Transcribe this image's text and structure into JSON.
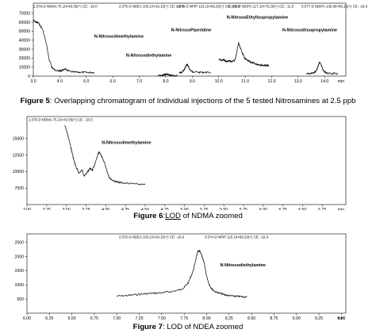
{
  "figures": [
    {
      "id": "fig5",
      "caption_label": "Figure 5",
      "caption_text": ": Overlapping chromatogram of Individual injections of the 5 tested Nitrosamines at 2.5 ppb",
      "header_texts": [
        "1:376-D NDMA 75.10>43.05(+) CE: -18.0",
        "2:375-D NDEA 103.10>29.15(+) CE: -16.0",
        "3:374-D NPIP 115.10>69.20(+) CE: -16.0",
        "4:378-D NEIPA 117.10>75.20(+) CE: -11.0",
        "5:377-D NDIPA 130.90>89.15(+) CE: -18.0"
      ],
      "chart_data": {
        "type": "line",
        "xlim": [
          3.0,
          14.8
        ],
        "ylim": [
          0,
          75000
        ],
        "xticks": [
          3.0,
          4.0,
          5.0,
          6.0,
          7.0,
          8.0,
          9.0,
          10.0,
          11.0,
          12.0,
          13.0,
          14.0
        ],
        "xtick_labels": [
          "3.0",
          "4.0",
          "5.0",
          "6.0",
          "7.0",
          "8.0",
          "9.0",
          "10.0",
          "11.0",
          "12.0",
          "13.0",
          "14.0"
        ],
        "yticks": [
          0,
          10000,
          20000,
          30000,
          40000,
          50000,
          60000,
          70000
        ],
        "ytick_labels": [
          "0",
          "10000",
          "20000",
          "30000",
          "40000",
          "50000",
          "60000",
          "70000"
        ],
        "xunit": "min",
        "series": [
          {
            "x": [
              3.0,
              3.1,
              3.2,
              3.35,
              3.5,
              3.6,
              3.7,
              3.8,
              3.9,
              4.0,
              4.1,
              4.2,
              4.3,
              4.5,
              4.7,
              4.9,
              5.1,
              5.3
            ],
            "y": [
              62000,
              60000,
              59000,
              52000,
              35000,
              18000,
              10000,
              7000,
              6000,
              5500,
              6500,
              8000,
              6000,
              4500,
              4300,
              4200,
              4100,
              4000
            ]
          },
          {
            "x": [
              7.7,
              7.85,
              7.95,
              8.02,
              8.1,
              8.2,
              8.3,
              8.45
            ],
            "y": [
              600,
              700,
              1400,
              2300,
              1500,
              800,
              600,
              600
            ]
          },
          {
            "x": [
              8.5,
              8.6,
              8.7,
              8.75,
              8.8,
              8.85,
              8.9,
              9.0,
              9.1,
              9.3,
              9.5,
              9.7
            ],
            "y": [
              3500,
              4000,
              7000,
              10500,
              13000,
              11000,
              7500,
              5000,
              4500,
              4200,
              4200,
              4000
            ]
          },
          {
            "x": [
              10.0,
              10.1,
              10.2,
              10.3,
              10.4,
              10.5,
              10.6,
              10.65,
              10.7,
              10.75,
              10.8,
              10.9,
              11.0,
              11.1,
              11.2,
              11.3,
              11.4,
              11.5,
              11.6,
              11.7,
              11.8,
              11.9
            ],
            "y": [
              18500,
              17500,
              18000,
              16000,
              17000,
              16000,
              17500,
              22000,
              30000,
              37000,
              33000,
              25000,
              19000,
              17000,
              15500,
              14500,
              13500,
              13000,
              12500,
              12000,
              11800,
              11500
            ]
          },
          {
            "x": [
              13.3,
              13.45,
              13.6,
              13.7,
              13.75,
              13.8,
              13.85,
              13.9,
              13.95,
              14.0,
              14.1,
              14.3,
              14.5
            ],
            "y": [
              2500,
              2800,
              3500,
              7000,
              11000,
              15000,
              14000,
              10000,
              6500,
              4500,
              3200,
              2800,
              2600
            ]
          }
        ],
        "annotations": [
          {
            "text": "N-Nitrosodimethylamine",
            "x": 5.3,
            "y": 43000
          },
          {
            "text": "N-Nitrosodiethylamine",
            "x": 6.5,
            "y": 21500
          },
          {
            "text": "N-NitrosoPiperidine",
            "x": 8.2,
            "y": 50000
          },
          {
            "text": "N-NitrosoEthylIsopropylamine",
            "x": 10.3,
            "y": 64000
          },
          {
            "text": "N-Nitrosodiisopropylamine",
            "x": 12.4,
            "y": 50000
          }
        ]
      }
    },
    {
      "id": "fig6",
      "caption_label": "Figure 6",
      "caption_link": "LOD",
      "caption_text": " of NDMA zoomed",
      "header_texts": [
        "1:376-D NDMA 75.10>43.05(+) CE: -18.0"
      ],
      "chart_data": {
        "type": "line",
        "xlim": [
          3.0,
          7.05
        ],
        "ylim": [
          5000,
          17500
        ],
        "xticks": [
          3.0,
          3.25,
          3.5,
          3.75,
          4.0,
          4.25,
          4.5,
          4.75,
          5.0,
          5.25,
          5.5,
          5.75,
          6.0,
          6.25,
          6.5,
          6.75
        ],
        "xtick_labels": [
          "3.00",
          "3.25",
          "3.50",
          "3.75",
          "4.00",
          "4.25",
          "4.50",
          "4.75",
          "5.00",
          "5.25",
          "5.50",
          "5.75",
          "6.00",
          "6.25",
          "6.50",
          "6.75"
        ],
        "yticks": [
          7500,
          10000,
          12500,
          15000
        ],
        "ytick_labels": [
          "7500",
          "10000",
          "12500",
          "15000"
        ],
        "xunit": "min",
        "series": [
          {
            "x": [
              3.48,
              3.52,
              3.55,
              3.58,
              3.6,
              3.63,
              3.66,
              3.7,
              3.73,
              3.76,
              3.8,
              3.83,
              3.86,
              3.9,
              3.92,
              3.95,
              3.98,
              4.02,
              4.05,
              4.1,
              4.15,
              4.2,
              4.3,
              4.4,
              4.5
            ],
            "y": [
              17000,
              15500,
              14000,
              12500,
              11500,
              10500,
              9800,
              10200,
              9300,
              9800,
              10500,
              10200,
              11000,
              12500,
              13000,
              12200,
              11500,
              10000,
              9000,
              8600,
              8400,
              8300,
              8200,
              8100,
              8000
            ]
          }
        ],
        "annotations": [
          {
            "text": "N-Nitrosodimethylamine",
            "x": 3.95,
            "y": 14200
          }
        ]
      }
    },
    {
      "id": "fig7",
      "caption_label": "Figure 7",
      "caption_text": ": LOD of NDEA zoomed",
      "header_texts": [
        "2:375-D NDEA 103.10>29.15(+) CE: -16.0",
        "3:374-D NPIP 115.10>69.20(+) CE: -16.0"
      ],
      "chart_data": {
        "type": "line",
        "xlim": [
          6.0,
          9.55
        ],
        "ylim": [
          0,
          2600
        ],
        "xticks": [
          6.0,
          6.25,
          6.5,
          6.75,
          7.0,
          7.25,
          7.5,
          7.75,
          8.0,
          8.25,
          8.5,
          8.75,
          9.0,
          9.25,
          9.5
        ],
        "xtick_labels": [
          "6.00",
          "6.25",
          "6.50",
          "6.75",
          "7.00",
          "7.25",
          "7.50",
          "7.75",
          "8.00",
          "8.25",
          "8.50",
          "8.75",
          "9.00",
          "9.25",
          "9.50"
        ],
        "yticks": [
          500,
          1000,
          1500,
          2000,
          2500
        ],
        "ytick_labels": [
          "500",
          "1000",
          "1500",
          "2000",
          "2500"
        ],
        "xunit": "min",
        "series": [
          {
            "x": [
              7.0,
              7.1,
              7.2,
              7.3,
              7.4,
              7.5,
              7.6,
              7.7,
              7.75,
              7.8,
              7.85,
              7.88,
              7.9,
              7.92,
              7.95,
              7.97,
              8.0,
              8.03,
              8.06,
              8.1,
              8.15,
              8.2,
              8.25,
              8.3,
              8.35,
              8.4,
              8.45
            ],
            "y": [
              600,
              620,
              650,
              680,
              700,
              720,
              760,
              820,
              900,
              1100,
              1500,
              1900,
              2150,
              2200,
              2000,
              1800,
              1300,
              1000,
              850,
              750,
              700,
              650,
              620,
              600,
              590,
              580,
              570
            ]
          }
        ],
        "annotations": [
          {
            "text": "N-Nitrosodiethylamine",
            "x": 8.15,
            "y": 1650
          }
        ]
      }
    }
  ]
}
